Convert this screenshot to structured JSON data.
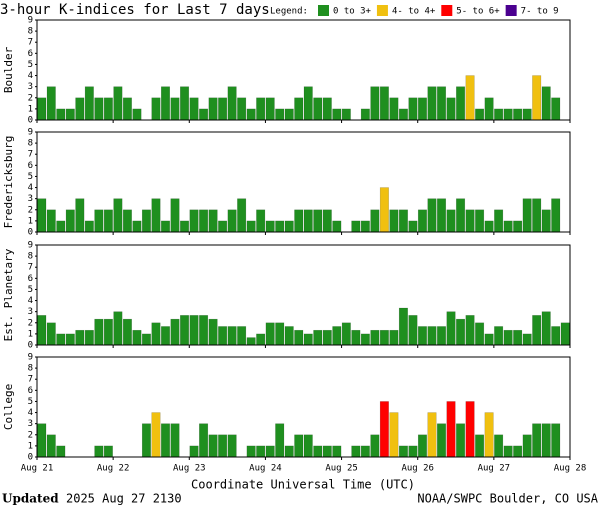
{
  "header": {
    "title": "3-hour K-indices for Last 7 days",
    "legend_label": "Legend:"
  },
  "legend": [
    {
      "label": "0 to 3+",
      "color": "#1f8f1f"
    },
    {
      "label": "4- to 4+",
      "color": "#f0c010"
    },
    {
      "label": "5- to 6+",
      "color": "#ff0000"
    },
    {
      "label": "7- to 9",
      "color": "#4b0090"
    }
  ],
  "x_axis": {
    "label": "Coordinate Universal Time (UTC)",
    "ticklabels": [
      "Aug 21",
      "Aug 22",
      "Aug 23",
      "Aug 24",
      "Aug 25",
      "Aug 26",
      "Aug 27",
      "Aug 28"
    ]
  },
  "footer": {
    "updated_label": "Updated",
    "updated": "2025 Aug 27 2130",
    "source": "NOAA/SWPC Boulder, CO USA"
  },
  "chart_data": [
    {
      "type": "bar",
      "ylabel": "Boulder",
      "ylim": [
        0,
        9
      ],
      "yticks": [
        0,
        1,
        2,
        3,
        4,
        5,
        6,
        7,
        8,
        9
      ],
      "values": [
        2,
        3,
        1,
        1,
        2,
        3,
        2,
        2,
        3,
        2,
        1,
        0,
        2,
        3,
        2,
        3,
        2,
        1,
        2,
        2,
        3,
        2,
        1,
        2,
        2,
        1,
        1,
        2,
        3,
        2,
        2,
        1,
        1,
        0,
        1,
        3,
        3,
        2,
        1,
        2,
        2,
        3,
        3,
        2,
        3,
        4,
        1,
        2,
        1,
        1,
        1,
        1,
        4,
        3,
        2,
        0
      ],
      "colors": [
        "#1f8f1f",
        "#1f8f1f",
        "#1f8f1f",
        "#1f8f1f",
        "#1f8f1f",
        "#1f8f1f",
        "#1f8f1f",
        "#1f8f1f",
        "#1f8f1f",
        "#1f8f1f",
        "#1f8f1f",
        "#1f8f1f",
        "#1f8f1f",
        "#1f8f1f",
        "#1f8f1f",
        "#1f8f1f",
        "#1f8f1f",
        "#1f8f1f",
        "#1f8f1f",
        "#1f8f1f",
        "#1f8f1f",
        "#1f8f1f",
        "#1f8f1f",
        "#1f8f1f",
        "#1f8f1f",
        "#1f8f1f",
        "#1f8f1f",
        "#1f8f1f",
        "#1f8f1f",
        "#1f8f1f",
        "#1f8f1f",
        "#1f8f1f",
        "#1f8f1f",
        "#1f8f1f",
        "#1f8f1f",
        "#1f8f1f",
        "#1f8f1f",
        "#1f8f1f",
        "#1f8f1f",
        "#1f8f1f",
        "#1f8f1f",
        "#1f8f1f",
        "#1f8f1f",
        "#1f8f1f",
        "#1f8f1f",
        "#f0c010",
        "#1f8f1f",
        "#1f8f1f",
        "#1f8f1f",
        "#1f8f1f",
        "#1f8f1f",
        "#1f8f1f",
        "#f0c010",
        "#1f8f1f",
        "#1f8f1f",
        "#1f8f1f"
      ]
    },
    {
      "type": "bar",
      "ylabel": "Fredericksburg",
      "ylim": [
        0,
        9
      ],
      "yticks": [
        0,
        1,
        2,
        3,
        4,
        5,
        6,
        7,
        8,
        9
      ],
      "values": [
        3,
        2,
        1,
        2,
        3,
        1,
        2,
        2,
        3,
        2,
        1,
        2,
        3,
        1,
        3,
        1,
        2,
        2,
        2,
        1,
        2,
        3,
        1,
        2,
        1,
        1,
        1,
        2,
        2,
        2,
        2,
        1,
        0,
        1,
        1,
        2,
        4,
        2,
        2,
        1,
        2,
        3,
        3,
        2,
        3,
        2,
        2,
        1,
        2,
        1,
        1,
        3,
        3,
        2,
        3,
        0
      ],
      "colors": [
        "#1f8f1f",
        "#1f8f1f",
        "#1f8f1f",
        "#1f8f1f",
        "#1f8f1f",
        "#1f8f1f",
        "#1f8f1f",
        "#1f8f1f",
        "#1f8f1f",
        "#1f8f1f",
        "#1f8f1f",
        "#1f8f1f",
        "#1f8f1f",
        "#1f8f1f",
        "#1f8f1f",
        "#1f8f1f",
        "#1f8f1f",
        "#1f8f1f",
        "#1f8f1f",
        "#1f8f1f",
        "#1f8f1f",
        "#1f8f1f",
        "#1f8f1f",
        "#1f8f1f",
        "#1f8f1f",
        "#1f8f1f",
        "#1f8f1f",
        "#1f8f1f",
        "#1f8f1f",
        "#1f8f1f",
        "#1f8f1f",
        "#1f8f1f",
        "#1f8f1f",
        "#1f8f1f",
        "#1f8f1f",
        "#1f8f1f",
        "#f0c010",
        "#1f8f1f",
        "#1f8f1f",
        "#1f8f1f",
        "#1f8f1f",
        "#1f8f1f",
        "#1f8f1f",
        "#1f8f1f",
        "#1f8f1f",
        "#1f8f1f",
        "#1f8f1f",
        "#1f8f1f",
        "#1f8f1f",
        "#1f8f1f",
        "#1f8f1f",
        "#1f8f1f",
        "#1f8f1f",
        "#1f8f1f",
        "#1f8f1f",
        "#1f8f1f"
      ]
    },
    {
      "type": "bar",
      "ylabel": "Est. Planetary",
      "ylim": [
        0,
        9
      ],
      "yticks": [
        0,
        1,
        2,
        3,
        4,
        5,
        6,
        7,
        8,
        9
      ],
      "values": [
        2.67,
        2,
        1,
        1,
        1.33,
        1.33,
        2.33,
        2.33,
        3,
        2.33,
        1.33,
        1,
        2,
        1.67,
        2.33,
        2.67,
        2.67,
        2.67,
        2.33,
        1.67,
        1.67,
        1.67,
        0.67,
        1,
        2,
        2,
        1.67,
        1.33,
        1,
        1.33,
        1.33,
        1.67,
        2,
        1.33,
        1,
        1.33,
        1.33,
        1.33,
        3.33,
        2.67,
        1.67,
        1.67,
        1.67,
        3,
        2.33,
        2.67,
        2,
        1,
        1.67,
        1.33,
        1.33,
        1,
        2.67,
        3,
        1.67,
        2
      ],
      "colors": [
        "#1f8f1f",
        "#1f8f1f",
        "#1f8f1f",
        "#1f8f1f",
        "#1f8f1f",
        "#1f8f1f",
        "#1f8f1f",
        "#1f8f1f",
        "#1f8f1f",
        "#1f8f1f",
        "#1f8f1f",
        "#1f8f1f",
        "#1f8f1f",
        "#1f8f1f",
        "#1f8f1f",
        "#1f8f1f",
        "#1f8f1f",
        "#1f8f1f",
        "#1f8f1f",
        "#1f8f1f",
        "#1f8f1f",
        "#1f8f1f",
        "#1f8f1f",
        "#1f8f1f",
        "#1f8f1f",
        "#1f8f1f",
        "#1f8f1f",
        "#1f8f1f",
        "#1f8f1f",
        "#1f8f1f",
        "#1f8f1f",
        "#1f8f1f",
        "#1f8f1f",
        "#1f8f1f",
        "#1f8f1f",
        "#1f8f1f",
        "#1f8f1f",
        "#1f8f1f",
        "#1f8f1f",
        "#1f8f1f",
        "#1f8f1f",
        "#1f8f1f",
        "#1f8f1f",
        "#1f8f1f",
        "#1f8f1f",
        "#1f8f1f",
        "#1f8f1f",
        "#1f8f1f",
        "#1f8f1f",
        "#1f8f1f",
        "#1f8f1f",
        "#1f8f1f",
        "#1f8f1f",
        "#1f8f1f",
        "#1f8f1f",
        "#1f8f1f"
      ]
    },
    {
      "type": "bar",
      "ylabel": "College",
      "ylim": [
        0,
        9
      ],
      "yticks": [
        0,
        1,
        2,
        3,
        4,
        5,
        6,
        7,
        8,
        9
      ],
      "values": [
        3,
        2,
        1,
        0,
        0,
        0,
        1,
        1,
        0,
        0,
        0,
        3,
        4,
        3,
        3,
        0,
        1,
        3,
        2,
        2,
        2,
        0,
        1,
        1,
        1,
        3,
        1,
        2,
        2,
        1,
        1,
        1,
        0,
        1,
        1,
        2,
        5,
        4,
        1,
        1,
        2,
        4,
        3,
        5,
        3,
        5,
        2,
        4,
        2,
        1,
        1,
        2,
        3,
        3,
        3,
        0
      ],
      "colors": [
        "#1f8f1f",
        "#1f8f1f",
        "#1f8f1f",
        "#1f8f1f",
        "#1f8f1f",
        "#1f8f1f",
        "#1f8f1f",
        "#1f8f1f",
        "#1f8f1f",
        "#1f8f1f",
        "#1f8f1f",
        "#1f8f1f",
        "#f0c010",
        "#1f8f1f",
        "#1f8f1f",
        "#1f8f1f",
        "#1f8f1f",
        "#1f8f1f",
        "#1f8f1f",
        "#1f8f1f",
        "#1f8f1f",
        "#1f8f1f",
        "#1f8f1f",
        "#1f8f1f",
        "#1f8f1f",
        "#1f8f1f",
        "#1f8f1f",
        "#1f8f1f",
        "#1f8f1f",
        "#1f8f1f",
        "#1f8f1f",
        "#1f8f1f",
        "#1f8f1f",
        "#1f8f1f",
        "#1f8f1f",
        "#1f8f1f",
        "#ff0000",
        "#f0c010",
        "#1f8f1f",
        "#1f8f1f",
        "#1f8f1f",
        "#f0c010",
        "#1f8f1f",
        "#ff0000",
        "#1f8f1f",
        "#ff0000",
        "#1f8f1f",
        "#f0c010",
        "#1f8f1f",
        "#1f8f1f",
        "#1f8f1f",
        "#1f8f1f",
        "#1f8f1f",
        "#1f8f1f",
        "#1f8f1f",
        "#1f8f1f"
      ]
    }
  ]
}
